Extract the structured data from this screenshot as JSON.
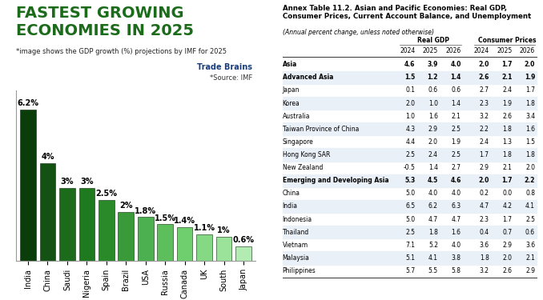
{
  "chart_data": {
    "type": "bar",
    "title": "FASTEST GROWING\nECONOMIES IN 2025",
    "subtitle": "*image shows the GDP growth (%) projections by IMF for 2025",
    "annotations": [
      "Trade Brains",
      "*Source: IMF"
    ],
    "categories": [
      "India",
      "China",
      "Saudi",
      "Nigeria",
      "Spain",
      "Brazil",
      "USA",
      "Russia",
      "Canada",
      "UK",
      "South",
      "Japan"
    ],
    "values": [
      6.2,
      4,
      3,
      3,
      2.5,
      2,
      1.8,
      1.5,
      1.4,
      1.1,
      1,
      0.6
    ],
    "value_labels": [
      "6.2%",
      "4%",
      "3%",
      "3%",
      "2.5%",
      "2%",
      "1.8%",
      "1.5%",
      "1.4%",
      "1.1%",
      "1%",
      "0.6%"
    ],
    "colors": [
      "#0b3d0b",
      "#145214",
      "#1b6b1b",
      "#1f7a1f",
      "#2a8a2a",
      "#3a9a3a",
      "#4caf50",
      "#5cbf5c",
      "#6fcf6f",
      "#85d985",
      "#9be39b",
      "#b3ecb3"
    ],
    "ylim": [
      0,
      7
    ],
    "yticks": [],
    "data_labels": true,
    "tick_labels": "x",
    "grid": false
  },
  "table": {
    "title": "Annex Table 11.2. Asian and Pacific Economies: Real GDP, Consumer Prices, Current Account Balance, and Unemployment",
    "subtitle": "(Annual percent change, unless noted otherwise)",
    "groups": [
      "Real GDP",
      "Consumer Prices"
    ],
    "years": [
      2024,
      2025,
      2026
    ],
    "rows": [
      {
        "name": "Asia",
        "values": [
          4.6,
          3.9,
          4.0,
          2.0,
          1.7,
          2.0
        ]
      },
      {
        "name": "Advanced Asia",
        "values": [
          1.5,
          1.2,
          1.4,
          2.6,
          2.1,
          1.9
        ]
      },
      {
        "name": "Japan",
        "values": [
          0.1,
          0.6,
          0.6,
          2.7,
          2.4,
          1.7
        ]
      },
      {
        "name": "Korea",
        "values": [
          2.0,
          1.0,
          1.4,
          2.3,
          1.9,
          1.8
        ]
      },
      {
        "name": "Australia",
        "values": [
          1.0,
          1.6,
          2.1,
          3.2,
          2.6,
          3.4
        ]
      },
      {
        "name": "Taiwan Province of China",
        "values": [
          4.3,
          2.9,
          2.5,
          2.2,
          1.8,
          1.6
        ]
      },
      {
        "name": "Singapore",
        "values": [
          4.4,
          2.0,
          1.9,
          2.4,
          1.3,
          1.5
        ]
      },
      {
        "name": "Hong Kong SAR",
        "values": [
          2.5,
          2.4,
          2.5,
          1.7,
          1.8,
          1.8
        ]
      },
      {
        "name": "New Zealand",
        "values": [
          -0.5,
          1.4,
          2.7,
          2.9,
          2.1,
          2.0
        ]
      },
      {
        "name": "Emerging and Developing Asia",
        "values": [
          5.3,
          4.5,
          4.6,
          2.0,
          1.7,
          2.2
        ]
      },
      {
        "name": "China",
        "values": [
          5.0,
          4.0,
          4.0,
          0.2,
          0.0,
          0.8
        ]
      },
      {
        "name": "India",
        "values": [
          6.5,
          6.2,
          6.3,
          4.7,
          4.2,
          4.1
        ]
      },
      {
        "name": "Indonesia",
        "values": [
          5.0,
          4.7,
          4.7,
          2.3,
          1.7,
          2.5
        ]
      },
      {
        "name": "Thailand",
        "values": [
          2.5,
          1.8,
          1.6,
          0.4,
          0.7,
          0.6
        ]
      },
      {
        "name": "Vietnam",
        "values": [
          7.1,
          5.2,
          4.0,
          3.6,
          2.9,
          3.6
        ]
      },
      {
        "name": "Malaysia",
        "values": [
          5.1,
          4.1,
          3.8,
          1.8,
          2.0,
          2.1
        ]
      },
      {
        "name": "Philippines",
        "values": [
          5.7,
          5.5,
          5.8,
          3.2,
          2.6,
          2.9
        ]
      }
    ]
  }
}
